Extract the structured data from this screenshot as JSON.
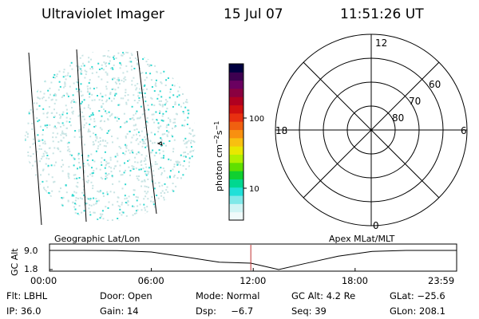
{
  "header": {
    "title": "Ultraviolet Imager",
    "date": "15 Jul 07",
    "time": "11:51:26 UT"
  },
  "colorbar": {
    "label": "photon cm",
    "label_sup1": "−2",
    "label_mid": "s",
    "label_sup2": "−1",
    "ticks": [
      {
        "label": "100",
        "value": 100
      },
      {
        "label": "10",
        "value": 10
      }
    ],
    "colors": [
      "#000040",
      "#3d0050",
      "#6a0060",
      "#8a0040",
      "#b00020",
      "#d01010",
      "#e83010",
      "#f06010",
      "#f89010",
      "#f8c010",
      "#e8e800",
      "#b0f000",
      "#60e000",
      "#10d030",
      "#00d890",
      "#20e0d8",
      "#80e8e8",
      "#d0f4f4",
      "#f0fafa"
    ]
  },
  "left_panel": {
    "name": "Geographic Lat/Lon"
  },
  "polar": {
    "name": "Apex MLat/MLT",
    "mlt_labels": {
      "top": "12",
      "left": "18",
      "right": "6",
      "bottom": "0"
    },
    "lat_labels": [
      "60",
      "70",
      "80"
    ]
  },
  "strip": {
    "ylabel": "GC Alt",
    "y_ticks": [
      "9.0",
      "1.8"
    ],
    "x_ticks": [
      "00:00",
      "06:00",
      "12:00",
      "18:00",
      "23:59"
    ],
    "current_time_hours": 11.857,
    "chart_data": {
      "type": "line",
      "xlabel": "",
      "ylabel": "GC Alt",
      "x_hours": [
        0,
        2,
        4,
        6,
        8,
        10,
        11.86,
        13.5,
        15,
        17,
        19,
        21,
        23.98
      ],
      "y_alt_re": [
        9.0,
        9.0,
        8.9,
        8.4,
        6.5,
        4.6,
        4.2,
        1.8,
        4.0,
        6.8,
        8.6,
        9.0,
        9.0
      ],
      "ylim": [
        1.8,
        9.0
      ],
      "xlim": [
        0,
        23.98
      ]
    }
  },
  "info": {
    "flt": "Flt: LBHL",
    "door": "Door: Open",
    "mode": "Mode: Normal",
    "gcalt": "GC Alt: 4.2 Re",
    "glat": "GLat: −25.6",
    "ip": "IP: 36.0",
    "gain": "Gain: 14",
    "dsp": "Dsp:     −6.7",
    "seq": "Seq: 39",
    "glon": "GLon: 208.1"
  },
  "colors": {
    "speckle_light": "#c8e4e4",
    "speckle_cyan": "#30d8d0",
    "grid_line": "#000000",
    "marker": "#c03030"
  }
}
